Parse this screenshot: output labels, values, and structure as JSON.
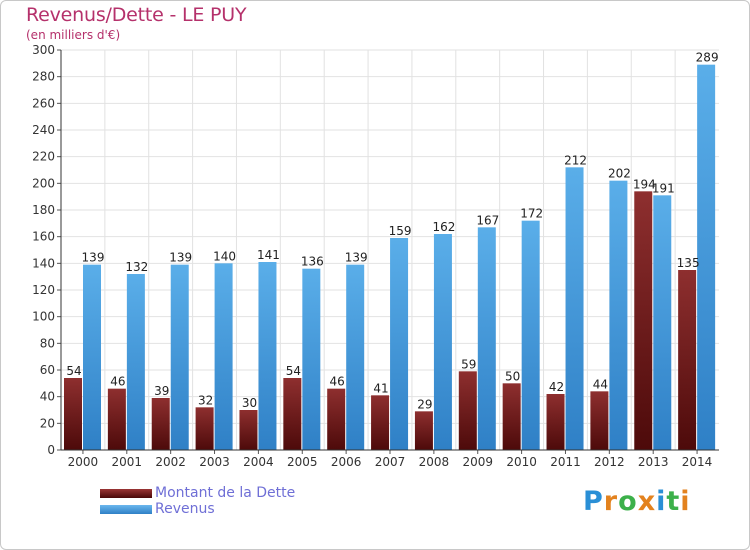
{
  "chart_data": {
    "type": "bar",
    "title": "Revenus/Dette - LE PUY",
    "subtitle": "(en milliers d'€)",
    "xlabel": "",
    "ylabel": "",
    "ylim": [
      0,
      300
    ],
    "yticks": [
      "0",
      "20",
      "40",
      "60",
      "80",
      "100",
      "120",
      "140",
      "160",
      "180",
      "200",
      "220",
      "240",
      "260",
      "280",
      "300"
    ],
    "grid": true,
    "legend_position": "bottom-left",
    "categories": [
      "2000",
      "2001",
      "2002",
      "2003",
      "2004",
      "2005",
      "2006",
      "2007",
      "2008",
      "2009",
      "2010",
      "2011",
      "2012",
      "2013",
      "2014"
    ],
    "series": [
      {
        "name": "Montant de la Dette",
        "color": "#7a1f1f",
        "values": [
          54,
          46,
          39,
          32,
          30,
          54,
          46,
          41,
          29,
          59,
          50,
          42,
          44,
          194,
          135
        ]
      },
      {
        "name": "Revenus",
        "color": "#4ea3e3",
        "values": [
          139,
          132,
          139,
          140,
          141,
          136,
          139,
          159,
          162,
          167,
          172,
          212,
          202,
          191,
          289
        ]
      }
    ]
  },
  "legend": {
    "debt_label": "Montant de la Dette",
    "revenue_label": "Revenus"
  },
  "brand": {
    "letters": [
      "P",
      "r",
      "o",
      "x",
      "i",
      "t",
      "i"
    ],
    "colors": [
      "#2a8fd6",
      "#e3821e",
      "#3cb04a",
      "#e3821e",
      "#2a8fd6",
      "#3cb04a",
      "#e3821e"
    ]
  }
}
